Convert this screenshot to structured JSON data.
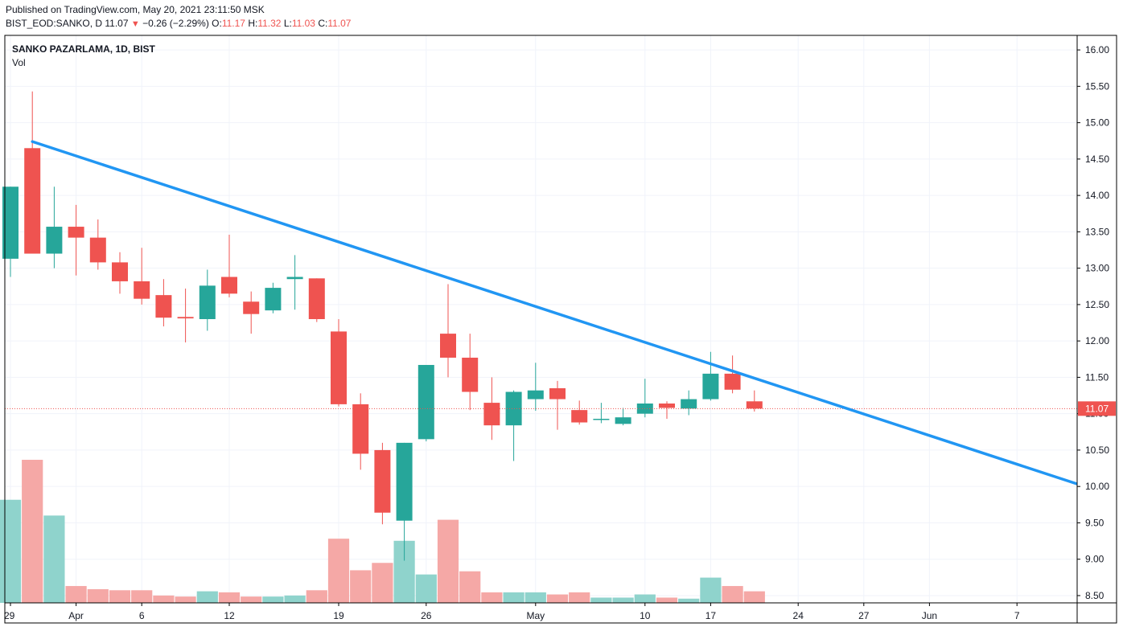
{
  "header": {
    "published": "Published on TradingView.com, May 20, 2021 23:11:50 MSK",
    "symbol": "BIST_EOD:SANKO, D",
    "last": "11.07",
    "change": "−0.26 (−2.29%)",
    "o_label": "O:",
    "o_value": "11.17",
    "h_label": "H:",
    "h_value": "11.32",
    "l_label": "L:",
    "l_value": "11.03",
    "c_label": "C:",
    "c_value": "11.07"
  },
  "pane": {
    "title": "SANKO PAZARLAMA, 1D, BIST",
    "volume_label": "Vol"
  },
  "colors": {
    "up": "#26a69a",
    "down": "#ef5350",
    "up_volume": "#8fd3cc",
    "down_volume": "#f5a8a6",
    "trendline": "#2196f3",
    "grid": "#f0f3fa",
    "border": "#000000",
    "price_line": "#ef5350"
  },
  "chart_data": {
    "type": "candlestick",
    "title": "SANKO PAZARLAMA, 1D, BIST",
    "ylim": [
      8.4,
      16.2
    ],
    "y_ticks": [
      8.5,
      9.0,
      9.5,
      10.0,
      10.5,
      11.0,
      11.5,
      12.0,
      12.5,
      13.0,
      13.5,
      14.0,
      14.5,
      15.0,
      15.5,
      16.0
    ],
    "y_tick_labels": [
      "8.50",
      "9.00",
      "9.50",
      "10.00",
      "10.50",
      "11.00",
      "11.50",
      "12.00",
      "12.50",
      "13.00",
      "13.50",
      "14.00",
      "14.50",
      "15.00",
      "15.50",
      "16.00"
    ],
    "last_price_label": "11.07",
    "last_price": 11.07,
    "x_ticks": [
      {
        "label": "29",
        "slot": 0
      },
      {
        "label": "Apr",
        "slot": 3
      },
      {
        "label": "6",
        "slot": 6
      },
      {
        "label": "12",
        "slot": 10
      },
      {
        "label": "19",
        "slot": 15
      },
      {
        "label": "26",
        "slot": 19
      },
      {
        "label": "May",
        "slot": 24
      },
      {
        "label": "10",
        "slot": 29
      },
      {
        "label": "17",
        "slot": 32
      },
      {
        "label": "24",
        "slot": 36
      },
      {
        "label": "27",
        "slot": 39
      },
      {
        "label": "Jun",
        "slot": 42
      },
      {
        "label": "7",
        "slot": 46
      }
    ],
    "candles": [
      {
        "slot": 0,
        "o": 13.13,
        "h": 14.12,
        "l": 12.88,
        "c": 14.12,
        "v": 0.98
      },
      {
        "slot": 1,
        "o": 14.65,
        "h": 15.43,
        "l": 13.2,
        "c": 13.2,
        "v": 1.36
      },
      {
        "slot": 2,
        "o": 13.2,
        "h": 14.12,
        "l": 13.0,
        "c": 13.57,
        "v": 0.83
      },
      {
        "slot": 3,
        "o": 13.57,
        "h": 13.87,
        "l": 12.9,
        "c": 13.42,
        "v": 0.16
      },
      {
        "slot": 4,
        "o": 13.42,
        "h": 13.67,
        "l": 12.98,
        "c": 13.08,
        "v": 0.13
      },
      {
        "slot": 5,
        "o": 13.08,
        "h": 13.22,
        "l": 12.65,
        "c": 12.82,
        "v": 0.12
      },
      {
        "slot": 6,
        "o": 12.82,
        "h": 13.28,
        "l": 12.5,
        "c": 12.58,
        "v": 0.12
      },
      {
        "slot": 7,
        "o": 12.63,
        "h": 12.85,
        "l": 12.2,
        "c": 12.32,
        "v": 0.07
      },
      {
        "slot": 8,
        "o": 12.33,
        "h": 12.72,
        "l": 11.98,
        "c": 12.31,
        "v": 0.06
      },
      {
        "slot": 9,
        "o": 12.3,
        "h": 12.98,
        "l": 12.14,
        "c": 12.76,
        "v": 0.11
      },
      {
        "slot": 10,
        "o": 12.88,
        "h": 13.46,
        "l": 12.6,
        "c": 12.65,
        "v": 0.1
      },
      {
        "slot": 11,
        "o": 12.54,
        "h": 12.68,
        "l": 12.1,
        "c": 12.37,
        "v": 0.06
      },
      {
        "slot": 12,
        "o": 12.42,
        "h": 12.8,
        "l": 12.38,
        "c": 12.73,
        "v": 0.06
      },
      {
        "slot": 13,
        "o": 12.85,
        "h": 13.18,
        "l": 12.43,
        "c": 12.88,
        "v": 0.07
      },
      {
        "slot": 14,
        "o": 12.86,
        "h": 12.86,
        "l": 12.26,
        "c": 12.3,
        "v": 0.12
      },
      {
        "slot": 15,
        "o": 12.13,
        "h": 12.3,
        "l": 11.1,
        "c": 11.13,
        "v": 0.61
      },
      {
        "slot": 16,
        "o": 11.13,
        "h": 11.28,
        "l": 10.23,
        "c": 10.45,
        "v": 0.31
      },
      {
        "slot": 17,
        "o": 10.5,
        "h": 10.6,
        "l": 9.48,
        "c": 9.64,
        "v": 0.38
      },
      {
        "slot": 18,
        "o": 9.53,
        "h": 10.6,
        "l": 8.98,
        "c": 10.6,
        "v": 0.59
      },
      {
        "slot": 19,
        "o": 10.65,
        "h": 11.67,
        "l": 10.62,
        "c": 11.67,
        "v": 0.27
      },
      {
        "slot": 20,
        "o": 12.1,
        "h": 12.78,
        "l": 11.5,
        "c": 11.77,
        "v": 0.79
      },
      {
        "slot": 21,
        "o": 11.77,
        "h": 12.1,
        "l": 11.05,
        "c": 11.3,
        "v": 0.3
      },
      {
        "slot": 22,
        "o": 11.15,
        "h": 11.5,
        "l": 10.64,
        "c": 10.84,
        "v": 0.1
      },
      {
        "slot": 23,
        "o": 10.84,
        "h": 11.32,
        "l": 10.35,
        "c": 11.3,
        "v": 0.1
      },
      {
        "slot": 24,
        "o": 11.2,
        "h": 11.7,
        "l": 11.04,
        "c": 11.32,
        "v": 0.1
      },
      {
        "slot": 25,
        "o": 11.35,
        "h": 11.45,
        "l": 10.78,
        "c": 11.2,
        "v": 0.08
      },
      {
        "slot": 26,
        "o": 11.05,
        "h": 11.18,
        "l": 10.85,
        "c": 10.88,
        "v": 0.1
      },
      {
        "slot": 27,
        "o": 10.92,
        "h": 11.15,
        "l": 10.87,
        "c": 10.93,
        "v": 0.05
      },
      {
        "slot": 28,
        "o": 10.86,
        "h": 11.08,
        "l": 10.84,
        "c": 10.95,
        "v": 0.05
      },
      {
        "slot": 29,
        "o": 11.0,
        "h": 11.48,
        "l": 10.95,
        "c": 11.14,
        "v": 0.08
      },
      {
        "slot": 30,
        "o": 11.14,
        "h": 11.17,
        "l": 10.93,
        "c": 11.08,
        "v": 0.05
      },
      {
        "slot": 31,
        "o": 11.07,
        "h": 11.32,
        "l": 10.98,
        "c": 11.2,
        "v": 0.04
      },
      {
        "slot": 32,
        "o": 11.2,
        "h": 11.85,
        "l": 11.18,
        "c": 11.55,
        "v": 0.24
      },
      {
        "slot": 33,
        "o": 11.55,
        "h": 11.8,
        "l": 11.28,
        "c": 11.33,
        "v": 0.16
      },
      {
        "slot": 34,
        "o": 11.17,
        "h": 11.32,
        "l": 11.03,
        "c": 11.07,
        "v": 0.11
      }
    ],
    "trendline": {
      "from": {
        "slot": 1,
        "price": 14.74
      },
      "to": {
        "slot": 48.9,
        "price": 10.02
      }
    }
  }
}
